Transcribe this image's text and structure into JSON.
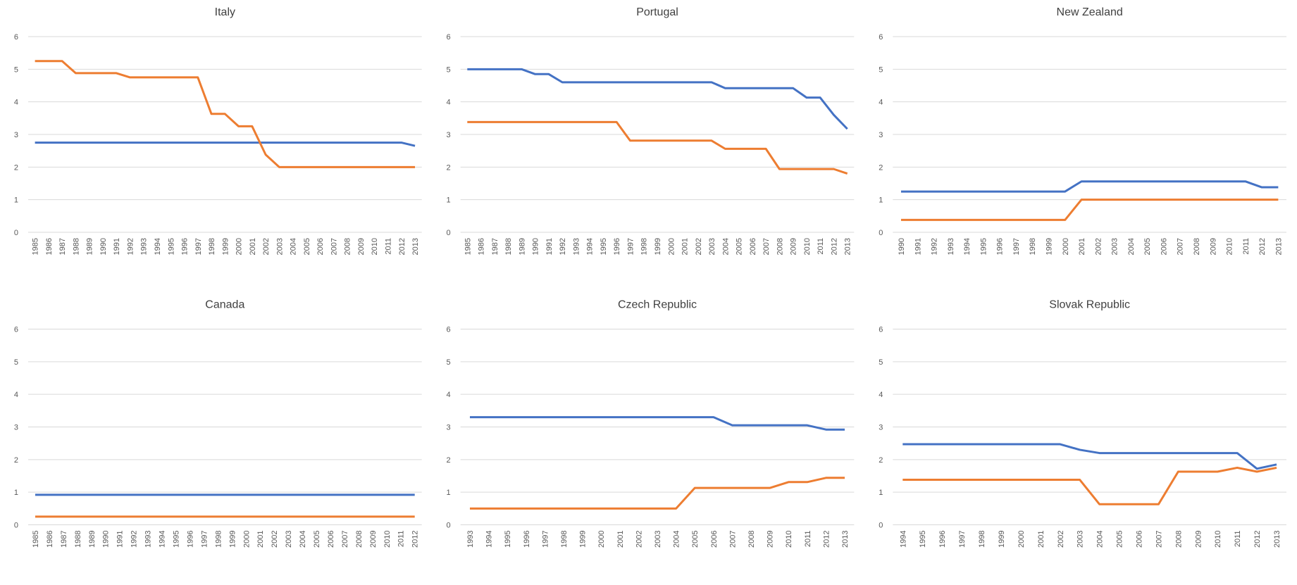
{
  "chart_data": [
    {
      "type": "line",
      "title": "Italy",
      "categories": [
        "1985",
        "1986",
        "1987",
        "1988",
        "1989",
        "1990",
        "1991",
        "1992",
        "1993",
        "1994",
        "1995",
        "1996",
        "1997",
        "1998",
        "1999",
        "2000",
        "2001",
        "2002",
        "2003",
        "2004",
        "2005",
        "2006",
        "2007",
        "2008",
        "2009",
        "2010",
        "2011",
        "2012",
        "2013"
      ],
      "series": [
        {
          "color": "#4472c4",
          "values": [
            2.75,
            2.75,
            2.75,
            2.75,
            2.75,
            2.75,
            2.75,
            2.75,
            2.75,
            2.75,
            2.75,
            2.75,
            2.75,
            2.75,
            2.75,
            2.75,
            2.75,
            2.75,
            2.75,
            2.75,
            2.75,
            2.75,
            2.75,
            2.75,
            2.75,
            2.75,
            2.75,
            2.75,
            2.65
          ]
        },
        {
          "color": "#ed7d31",
          "values": [
            5.25,
            5.25,
            5.25,
            4.88,
            4.88,
            4.88,
            4.88,
            4.75,
            4.75,
            4.75,
            4.75,
            4.75,
            4.75,
            3.63,
            3.63,
            3.25,
            3.25,
            2.38,
            2,
            2,
            2,
            2,
            2,
            2,
            2,
            2,
            2,
            2,
            2
          ]
        }
      ],
      "ylim": [
        0,
        6
      ],
      "yticks": [
        0,
        1,
        2,
        3,
        4,
        5,
        6
      ],
      "grid": true
    },
    {
      "type": "line",
      "title": "Portugal",
      "categories": [
        "1985",
        "1986",
        "1987",
        "1988",
        "1989",
        "1990",
        "1991",
        "1992",
        "1993",
        "1994",
        "1995",
        "1996",
        "1997",
        "1998",
        "1999",
        "2000",
        "2001",
        "2002",
        "2003",
        "2004",
        "2005",
        "2006",
        "2007",
        "2008",
        "2009",
        "2010",
        "2011",
        "2012",
        "2013"
      ],
      "series": [
        {
          "color": "#4472c4",
          "values": [
            5,
            5,
            5,
            5,
            5,
            4.85,
            4.85,
            4.6,
            4.6,
            4.6,
            4.6,
            4.6,
            4.6,
            4.6,
            4.6,
            4.6,
            4.6,
            4.6,
            4.6,
            4.42,
            4.42,
            4.42,
            4.42,
            4.42,
            4.42,
            4.13,
            4.13,
            3.6,
            3.17
          ]
        },
        {
          "color": "#ed7d31",
          "values": [
            3.38,
            3.38,
            3.38,
            3.38,
            3.38,
            3.38,
            3.38,
            3.38,
            3.38,
            3.38,
            3.38,
            3.38,
            2.81,
            2.81,
            2.81,
            2.81,
            2.81,
            2.81,
            2.81,
            2.56,
            2.56,
            2.56,
            2.56,
            1.94,
            1.94,
            1.94,
            1.94,
            1.94,
            1.8
          ]
        }
      ],
      "ylim": [
        0,
        6
      ],
      "yticks": [
        0,
        1,
        2,
        3,
        4,
        5,
        6
      ],
      "grid": true
    },
    {
      "type": "line",
      "title": "New Zealand",
      "categories": [
        "1990",
        "1991",
        "1992",
        "1993",
        "1994",
        "1995",
        "1996",
        "1997",
        "1998",
        "1999",
        "2000",
        "2001",
        "2002",
        "2003",
        "2004",
        "2005",
        "2006",
        "2007",
        "2008",
        "2009",
        "2010",
        "2011",
        "2012",
        "2013"
      ],
      "series": [
        {
          "color": "#4472c4",
          "values": [
            1.25,
            1.25,
            1.25,
            1.25,
            1.25,
            1.25,
            1.25,
            1.25,
            1.25,
            1.25,
            1.25,
            1.56,
            1.56,
            1.56,
            1.56,
            1.56,
            1.56,
            1.56,
            1.56,
            1.56,
            1.56,
            1.56,
            1.38,
            1.38
          ]
        },
        {
          "color": "#ed7d31",
          "values": [
            0.38,
            0.38,
            0.38,
            0.38,
            0.38,
            0.38,
            0.38,
            0.38,
            0.38,
            0.38,
            0.38,
            1,
            1,
            1,
            1,
            1,
            1,
            1,
            1,
            1,
            1,
            1,
            1,
            1
          ]
        }
      ],
      "ylim": [
        0,
        6
      ],
      "yticks": [
        0,
        1,
        2,
        3,
        4,
        5,
        6
      ],
      "grid": true
    },
    {
      "type": "line",
      "title": "Canada",
      "categories": [
        "1985",
        "1986",
        "1987",
        "1988",
        "1989",
        "1990",
        "1991",
        "1992",
        "1993",
        "1994",
        "1995",
        "1996",
        "1997",
        "1998",
        "1999",
        "2000",
        "2001",
        "2002",
        "2003",
        "2004",
        "2005",
        "2006",
        "2007",
        "2008",
        "2009",
        "2010",
        "2011",
        "2012"
      ],
      "series": [
        {
          "color": "#4472c4",
          "values": [
            0.92,
            0.92,
            0.92,
            0.92,
            0.92,
            0.92,
            0.92,
            0.92,
            0.92,
            0.92,
            0.92,
            0.92,
            0.92,
            0.92,
            0.92,
            0.92,
            0.92,
            0.92,
            0.92,
            0.92,
            0.92,
            0.92,
            0.92,
            0.92,
            0.92,
            0.92,
            0.92,
            0.92
          ]
        },
        {
          "color": "#ed7d31",
          "values": [
            0.25,
            0.25,
            0.25,
            0.25,
            0.25,
            0.25,
            0.25,
            0.25,
            0.25,
            0.25,
            0.25,
            0.25,
            0.25,
            0.25,
            0.25,
            0.25,
            0.25,
            0.25,
            0.25,
            0.25,
            0.25,
            0.25,
            0.25,
            0.25,
            0.25,
            0.25,
            0.25,
            0.25
          ]
        }
      ],
      "ylim": [
        0,
        6
      ],
      "yticks": [
        0,
        1,
        2,
        3,
        4,
        5,
        6
      ],
      "grid": true
    },
    {
      "type": "line",
      "title": "Czech Republic",
      "categories": [
        "1993",
        "1994",
        "1995",
        "1996",
        "1997",
        "1998",
        "1999",
        "2000",
        "2001",
        "2002",
        "2003",
        "2004",
        "2005",
        "2006",
        "2007",
        "2008",
        "2009",
        "2010",
        "2011",
        "2012",
        "2013"
      ],
      "series": [
        {
          "color": "#4472c4",
          "values": [
            3.3,
            3.3,
            3.3,
            3.3,
            3.3,
            3.3,
            3.3,
            3.3,
            3.3,
            3.3,
            3.3,
            3.3,
            3.3,
            3.3,
            3.05,
            3.05,
            3.05,
            3.05,
            3.05,
            2.92,
            2.92
          ]
        },
        {
          "color": "#ed7d31",
          "values": [
            0.5,
            0.5,
            0.5,
            0.5,
            0.5,
            0.5,
            0.5,
            0.5,
            0.5,
            0.5,
            0.5,
            0.5,
            1.13,
            1.13,
            1.13,
            1.13,
            1.13,
            1.31,
            1.31,
            1.44,
            1.44
          ]
        }
      ],
      "ylim": [
        0,
        6
      ],
      "yticks": [
        0,
        1,
        2,
        3,
        4,
        5,
        6
      ],
      "grid": true
    },
    {
      "type": "line",
      "title": "Slovak Republic",
      "categories": [
        "1994",
        "1995",
        "1996",
        "1997",
        "1998",
        "1999",
        "2000",
        "2001",
        "2002",
        "2003",
        "2004",
        "2005",
        "2006",
        "2007",
        "2008",
        "2009",
        "2010",
        "2011",
        "2012",
        "2013"
      ],
      "series": [
        {
          "color": "#4472c4",
          "values": [
            2.47,
            2.47,
            2.47,
            2.47,
            2.47,
            2.47,
            2.47,
            2.47,
            2.47,
            2.3,
            2.2,
            2.2,
            2.2,
            2.2,
            2.2,
            2.2,
            2.2,
            2.2,
            1.72,
            1.85
          ]
        },
        {
          "color": "#ed7d31",
          "values": [
            1.38,
            1.38,
            1.38,
            1.38,
            1.38,
            1.38,
            1.38,
            1.38,
            1.38,
            1.38,
            0.63,
            0.63,
            0.63,
            0.63,
            1.63,
            1.63,
            1.63,
            1.75,
            1.63,
            1.75
          ]
        }
      ],
      "ylim": [
        0,
        6
      ],
      "yticks": [
        0,
        1,
        2,
        3,
        4,
        5,
        6
      ],
      "grid": true
    }
  ]
}
